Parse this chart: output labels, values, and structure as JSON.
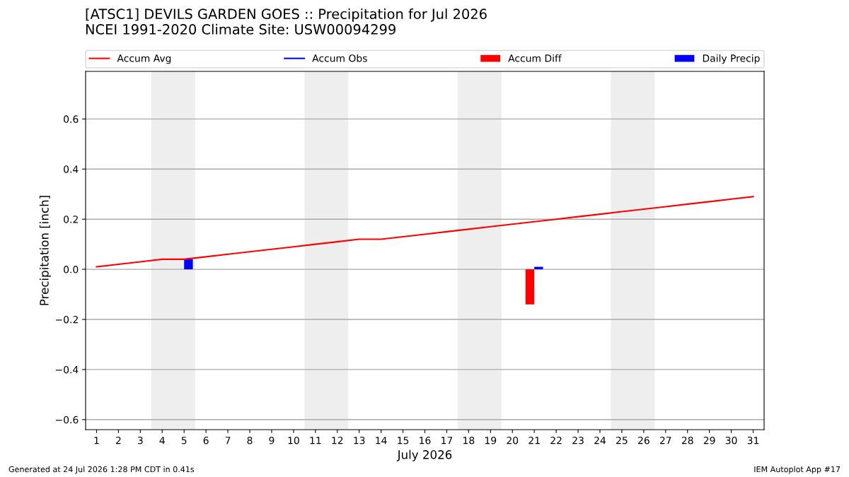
{
  "chart_data": {
    "type": "line",
    "title": "[ATSC1] DEVILS GARDEN GOES :: Precipitation for Jul 2026\nNCEI 1991-2020 Climate Site: USW00094299",
    "xlabel": "July 2026",
    "ylabel": "Precipitation [inch]",
    "x": [
      1,
      2,
      3,
      4,
      5,
      6,
      7,
      8,
      9,
      10,
      11,
      12,
      13,
      14,
      15,
      16,
      17,
      18,
      19,
      20,
      21,
      22,
      23,
      24,
      25,
      26,
      27,
      28,
      29,
      30,
      31
    ],
    "series": [
      {
        "name": "Accum Avg",
        "color": "#ff0000",
        "values": [
          0.01,
          0.02,
          0.03,
          0.04,
          0.04,
          0.05,
          0.06,
          0.07,
          0.08,
          0.09,
          0.1,
          0.11,
          0.12,
          0.12,
          0.13,
          0.14,
          0.15,
          0.16,
          0.17,
          0.18,
          0.19,
          0.2,
          0.21,
          0.22,
          0.23,
          0.24,
          0.25,
          0.26,
          0.27,
          0.28,
          0.29
        ]
      },
      {
        "name": "Accum Obs",
        "color": "#0000ff",
        "values": [
          null,
          null,
          null,
          null,
          null,
          null,
          null,
          null,
          null,
          null,
          null,
          null,
          null,
          null,
          null,
          null,
          null,
          null,
          null,
          null,
          null,
          null,
          null,
          null,
          null,
          null,
          null,
          null,
          null,
          null,
          null
        ]
      },
      {
        "name": "Accum Diff",
        "type": "bar",
        "color": "#ff0000",
        "values": [
          null,
          null,
          null,
          null,
          null,
          null,
          null,
          null,
          null,
          null,
          null,
          null,
          null,
          null,
          null,
          null,
          null,
          null,
          null,
          null,
          -0.14,
          null,
          null,
          null,
          null,
          null,
          null,
          null,
          null,
          null,
          null
        ]
      },
      {
        "name": "Daily Precip",
        "type": "bar",
        "color": "#0000ff",
        "values": [
          null,
          null,
          null,
          null,
          0.04,
          null,
          null,
          null,
          null,
          null,
          null,
          null,
          null,
          null,
          null,
          null,
          null,
          null,
          null,
          null,
          0.01,
          null,
          null,
          null,
          null,
          null,
          null,
          null,
          null,
          null,
          null
        ]
      }
    ],
    "bands": [
      {
        "axis": "x",
        "from": 3.5,
        "to": 5.5,
        "color": "#eeeeee"
      },
      {
        "axis": "x",
        "from": 10.5,
        "to": 12.5,
        "color": "#eeeeee"
      },
      {
        "axis": "x",
        "from": 17.5,
        "to": 19.5,
        "color": "#eeeeee"
      },
      {
        "axis": "x",
        "from": 24.5,
        "to": 26.5,
        "color": "#eeeeee"
      }
    ],
    "xlim": [
      0.5,
      31.5
    ],
    "xticks": [
      1,
      2,
      3,
      4,
      5,
      6,
      7,
      8,
      9,
      10,
      11,
      12,
      13,
      14,
      15,
      16,
      17,
      18,
      19,
      20,
      21,
      22,
      23,
      24,
      25,
      26,
      27,
      28,
      29,
      30,
      31
    ],
    "ylim": [
      -0.64,
      0.79
    ],
    "yticks": [
      {
        "value": -0.6,
        "label": "−0.6"
      },
      {
        "value": -0.4,
        "label": "−0.4"
      },
      {
        "value": -0.2,
        "label": "−0.2"
      },
      {
        "value": 0.0,
        "label": "0.0"
      },
      {
        "value": 0.2,
        "label": "0.2"
      },
      {
        "value": 0.4,
        "label": "0.4"
      },
      {
        "value": 0.6,
        "label": "0.6"
      }
    ],
    "grid": "y",
    "legend": "top",
    "annotations": [
      "Generated at 24 Jul 2026 1:28 PM CDT in 0.41s",
      "IEM Autoplot App #17"
    ]
  }
}
